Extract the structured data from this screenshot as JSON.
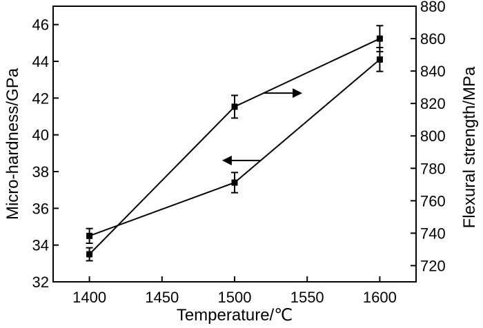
{
  "chart_data": {
    "type": "line",
    "xlabel": "Temperature/℃",
    "ylabel_left": "Micro-hardness/GPa",
    "ylabel_right": "Flexural strength/MPa",
    "xlim": [
      1375,
      1625
    ],
    "ylim_left": [
      32,
      47
    ],
    "ylim_right": [
      710,
      880
    ],
    "x_ticks": [
      1400,
      1450,
      1500,
      1550,
      1600
    ],
    "y_ticks_left": [
      32,
      34,
      36,
      38,
      40,
      42,
      44,
      46
    ],
    "y_ticks_right": [
      720,
      740,
      760,
      780,
      800,
      820,
      840,
      860,
      880
    ],
    "grid": false,
    "series": [
      {
        "axis": "left",
        "x": [
          1400,
          1500,
          1600
        ],
        "y": [
          34.5,
          37.4,
          44.1
        ],
        "err": [
          0.4,
          0.55,
          0.65
        ],
        "arrow": "left"
      },
      {
        "axis": "right",
        "x": [
          1400,
          1500,
          1600
        ],
        "y": [
          727,
          818,
          860
        ],
        "err": [
          4,
          7,
          8
        ],
        "arrow": "right"
      }
    ]
  }
}
